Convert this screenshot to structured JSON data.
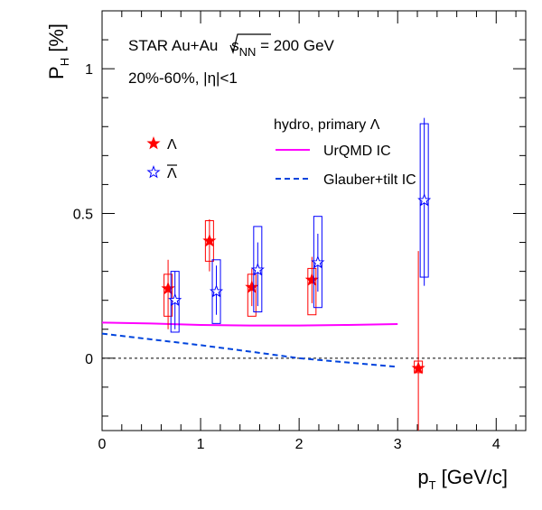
{
  "chart_data": {
    "type": "scatter",
    "annotations": {
      "line1_prefix": "STAR Au+Au ",
      "line1_sqrt_s": "s",
      "line1_sqrt_sub": "NN",
      "line1_suffix": " = 200 GeV",
      "line2": "20%-60%, |η|<1"
    },
    "xlabel": {
      "main": "p",
      "sub": "T",
      "rest": " [GeV/c]"
    },
    "ylabel": {
      "main": "P",
      "sub": "H",
      "rest": " [%]"
    },
    "xlim": [
      0,
      4.3
    ],
    "ylim": [
      -0.25,
      1.2
    ],
    "xticks": [
      {
        "value": 0,
        "label": "0"
      },
      {
        "value": 1,
        "label": "1"
      },
      {
        "value": 2,
        "label": "2"
      },
      {
        "value": 3,
        "label": "3"
      },
      {
        "value": 4,
        "label": "4"
      }
    ],
    "yticks": [
      {
        "value": 0,
        "label": "0"
      },
      {
        "value": 0.5,
        "label": "0.5"
      },
      {
        "value": 1,
        "label": "1"
      }
    ],
    "legend_markers": [
      {
        "name": "Λ",
        "color": "#ff0000",
        "filled": true
      },
      {
        "name": "Λ",
        "color": "#0000ff",
        "filled": false,
        "overline": true
      }
    ],
    "legend_models": {
      "title": "hydro, primary Λ",
      "items": [
        {
          "name": "UrQMD IC",
          "color": "#ff00ff",
          "dash": false
        },
        {
          "name": "Glauber+tilt IC",
          "color": "#0044dd",
          "dash": true
        }
      ]
    },
    "series": [
      {
        "color": "#ff0000",
        "filled": true,
        "points": [
          {
            "x": 0.67,
            "y": 0.24,
            "stat_lo": 0.1,
            "stat_hi": 0.34,
            "sys_lo": 0.145,
            "sys_hi": 0.29
          },
          {
            "x": 1.09,
            "y": 0.405,
            "stat_lo": 0.3,
            "stat_hi": 0.48,
            "sys_lo": 0.335,
            "sys_hi": 0.475
          },
          {
            "x": 1.52,
            "y": 0.245,
            "stat_lo": 0.18,
            "stat_hi": 0.31,
            "sys_lo": 0.145,
            "sys_hi": 0.29
          },
          {
            "x": 2.13,
            "y": 0.27,
            "stat_lo": 0.19,
            "stat_hi": 0.35,
            "sys_lo": 0.15,
            "sys_hi": 0.31
          },
          {
            "x": 3.21,
            "y": -0.035,
            "stat_lo": -0.25,
            "stat_hi": 0.37,
            "sys_lo": -0.05,
            "sys_hi": -0.01
          }
        ]
      },
      {
        "color": "#0000ff",
        "filled": false,
        "points": [
          {
            "x": 0.74,
            "y": 0.2,
            "stat_lo": 0.1,
            "stat_hi": 0.3,
            "sys_lo": 0.09,
            "sys_hi": 0.3
          },
          {
            "x": 1.16,
            "y": 0.23,
            "stat_lo": 0.15,
            "stat_hi": 0.32,
            "sys_lo": 0.12,
            "sys_hi": 0.34
          },
          {
            "x": 1.58,
            "y": 0.305,
            "stat_lo": 0.18,
            "stat_hi": 0.4,
            "sys_lo": 0.16,
            "sys_hi": 0.455
          },
          {
            "x": 2.19,
            "y": 0.33,
            "stat_lo": 0.23,
            "stat_hi": 0.43,
            "sys_lo": 0.175,
            "sys_hi": 0.49
          },
          {
            "x": 3.27,
            "y": 0.545,
            "stat_lo": 0.25,
            "stat_hi": 0.83,
            "sys_lo": 0.28,
            "sys_hi": 0.81
          }
        ]
      }
    ],
    "model_curves": [
      {
        "color": "#ff00ff",
        "dash": false,
        "x": [
          0,
          0.5,
          1,
          1.5,
          2,
          2.5,
          3
        ],
        "y": [
          0.123,
          0.12,
          0.115,
          0.113,
          0.113,
          0.115,
          0.118
        ]
      },
      {
        "color": "#0044dd",
        "dash": true,
        "x": [
          0,
          0.5,
          1,
          1.5,
          2,
          2.5,
          3
        ],
        "y": [
          0.085,
          0.065,
          0.045,
          0.023,
          0.0,
          -0.015,
          -0.03
        ]
      }
    ],
    "zero_line": {
      "y": 0,
      "color": "#000000",
      "dash": true
    },
    "grid": false,
    "legend_position": "top-right"
  }
}
